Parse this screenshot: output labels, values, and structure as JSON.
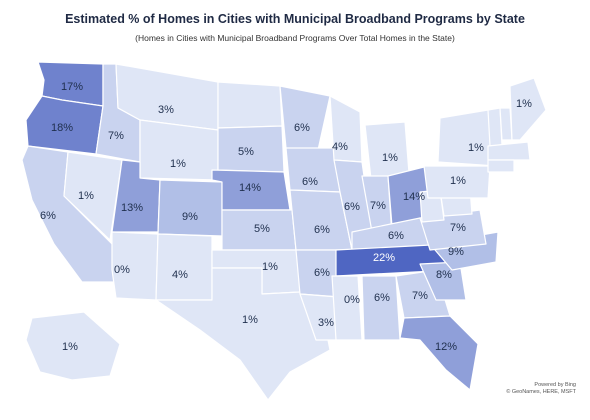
{
  "title": "Estimated % of Homes in Cities with Municipal Broadband Programs by State",
  "subtitle": "(Homes in Cities with Municipal Broadband Programs Over Total Homes in the State)",
  "credit": {
    "line1": "Powered by Bing",
    "line2": "© GeoNames, HERE, MSFT"
  },
  "colors": {
    "c0": "#dfe6f6",
    "c1": "#c9d3ef",
    "c2": "#b1bfe7",
    "c3": "#8f9fd9",
    "c4": "#6f82cd",
    "c5": "#4f66c2"
  },
  "states": [
    {
      "id": "WA",
      "value": 17,
      "label": "17%"
    },
    {
      "id": "OR",
      "value": 18,
      "label": "18%"
    },
    {
      "id": "CA",
      "value": 6,
      "label": "6%"
    },
    {
      "id": "NV",
      "value": 1,
      "label": "1%"
    },
    {
      "id": "ID",
      "value": 7,
      "label": "7%"
    },
    {
      "id": "MT",
      "value": 3,
      "label": "3%"
    },
    {
      "id": "WY",
      "value": 1,
      "label": "1%"
    },
    {
      "id": "UT",
      "value": 13,
      "label": "13%"
    },
    {
      "id": "CO",
      "value": 9,
      "label": "9%"
    },
    {
      "id": "AZ",
      "value": 0,
      "label": "0%"
    },
    {
      "id": "NM",
      "value": 4,
      "label": "4%"
    },
    {
      "id": "ND",
      "value": null,
      "label": ""
    },
    {
      "id": "SD",
      "value": 5,
      "label": "5%"
    },
    {
      "id": "NE",
      "value": 14,
      "label": "14%"
    },
    {
      "id": "KS",
      "value": 5,
      "label": "5%"
    },
    {
      "id": "OK",
      "value": 1,
      "label": "1%"
    },
    {
      "id": "TX",
      "value": 1,
      "label": "1%"
    },
    {
      "id": "MN",
      "value": 6,
      "label": "6%"
    },
    {
      "id": "IA",
      "value": 6,
      "label": "6%"
    },
    {
      "id": "MO",
      "value": 6,
      "label": "6%"
    },
    {
      "id": "AR",
      "value": 6,
      "label": "6%"
    },
    {
      "id": "LA",
      "value": 3,
      "label": "3%"
    },
    {
      "id": "WI",
      "value": 4,
      "label": "4%"
    },
    {
      "id": "IL",
      "value": 6,
      "label": "6%"
    },
    {
      "id": "MI",
      "value": 1,
      "label": "1%"
    },
    {
      "id": "IN",
      "value": 7,
      "label": "7%"
    },
    {
      "id": "OH",
      "value": 14,
      "label": "14%"
    },
    {
      "id": "KY",
      "value": 6,
      "label": "6%"
    },
    {
      "id": "TN",
      "value": 22,
      "label": "22%"
    },
    {
      "id": "MS",
      "value": 0,
      "label": "0%"
    },
    {
      "id": "AL",
      "value": 6,
      "label": "6%"
    },
    {
      "id": "GA",
      "value": 7,
      "label": "7%"
    },
    {
      "id": "FL",
      "value": 12,
      "label": "12%"
    },
    {
      "id": "SC",
      "value": 8,
      "label": "8%"
    },
    {
      "id": "NC",
      "value": 9,
      "label": "9%"
    },
    {
      "id": "VA",
      "value": 7,
      "label": "7%"
    },
    {
      "id": "WV",
      "value": null,
      "label": ""
    },
    {
      "id": "MD",
      "value": null,
      "label": ""
    },
    {
      "id": "PA",
      "value": 1,
      "label": "1%"
    },
    {
      "id": "NY",
      "value": 1,
      "label": "1%"
    },
    {
      "id": "VT",
      "value": null,
      "label": ""
    },
    {
      "id": "NH",
      "value": null,
      "label": ""
    },
    {
      "id": "MA",
      "value": null,
      "label": ""
    },
    {
      "id": "CT",
      "value": null,
      "label": ""
    },
    {
      "id": "ME",
      "value": 1,
      "label": "1%"
    },
    {
      "id": "AK",
      "value": 1,
      "label": "1%"
    }
  ]
}
